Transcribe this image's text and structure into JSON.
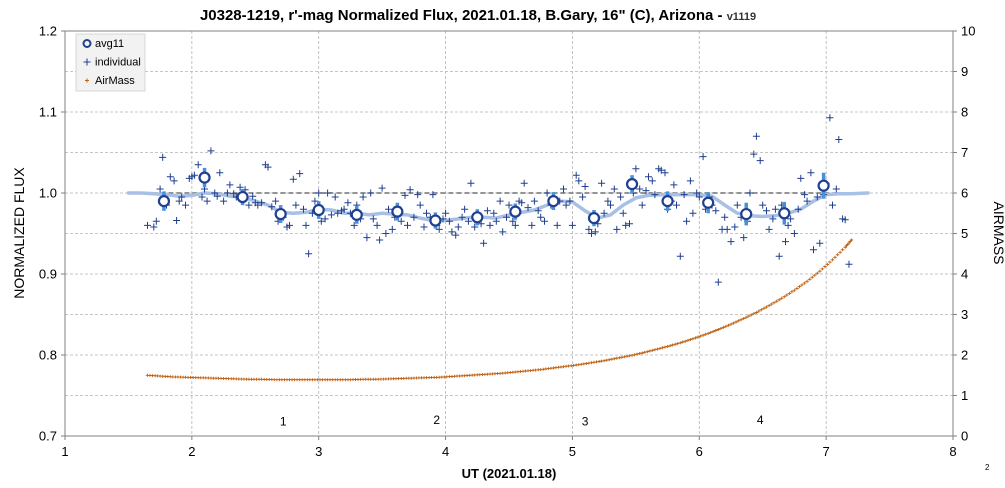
{
  "chart_data": {
    "type": "scatter",
    "title": "J0328-1219, r'-mag Normalized Flux, 2021.01.18, B.Gary, 16\" (C), Arizona",
    "title_suffix": " - ",
    "version": "v1119",
    "xlabel": "UT (2021.01.18)",
    "ylabel": "NORMALIZED FLUX",
    "y2label": "AIRMASS",
    "corner_label": "2",
    "xlim": [
      1,
      8
    ],
    "ylim": [
      0.7,
      1.2
    ],
    "y2lim": [
      0,
      10
    ],
    "x_ticks": [
      "1",
      "2",
      "3",
      "4",
      "5",
      "6",
      "7",
      "8"
    ],
    "y_ticks": [
      "0.7",
      "0.8",
      "0.9",
      "1.0",
      "1.1",
      "1.2"
    ],
    "y2_ticks": [
      "0",
      "1",
      "2",
      "3",
      "4",
      "5",
      "6",
      "7",
      "8",
      "9",
      "10"
    ],
    "grid": true,
    "legend_position": "top-left",
    "colors": {
      "avg": "#1f3f8f",
      "errorbar": "#4a90d9",
      "individual": "#1f3f8f",
      "airmass": "#c06010",
      "model": "#a8bfe6",
      "reference": "#707070",
      "grid": "#b4b4b4"
    },
    "reference_line": {
      "y": 1.0,
      "x": [
        1.5,
        7.33
      ]
    },
    "series": [
      {
        "name": "avg11",
        "x": [
          1.78,
          2.1,
          2.4,
          2.7,
          3.0,
          3.3,
          3.62,
          3.92,
          4.25,
          4.55,
          4.85,
          5.17,
          5.47,
          5.75,
          6.07,
          6.37,
          6.67,
          6.98
        ],
        "values": [
          0.99,
          1.019,
          0.995,
          0.974,
          0.979,
          0.973,
          0.977,
          0.966,
          0.97,
          0.977,
          0.99,
          0.969,
          1.011,
          0.99,
          0.988,
          0.974,
          0.975,
          1.009
        ],
        "errors": [
          0.012,
          0.012,
          0.01,
          0.011,
          0.011,
          0.011,
          0.011,
          0.01,
          0.01,
          0.01,
          0.011,
          0.01,
          0.011,
          0.012,
          0.013,
          0.014,
          0.014,
          0.016
        ]
      },
      {
        "name": "individual",
        "x": [
          1.65,
          1.7,
          1.72,
          1.75,
          1.77,
          1.8,
          1.83,
          1.86,
          1.88,
          1.9,
          1.92,
          1.95,
          1.98,
          2.0,
          2.02,
          2.05,
          2.08,
          2.1,
          2.12,
          2.15,
          2.18,
          2.2,
          2.22,
          2.25,
          2.28,
          2.3,
          2.33,
          2.35,
          2.38,
          2.42,
          2.45,
          2.48,
          2.5,
          2.52,
          2.55,
          2.58,
          2.6,
          2.63,
          2.66,
          2.68,
          2.7,
          2.72,
          2.75,
          2.77,
          2.8,
          2.82,
          2.85,
          2.88,
          2.9,
          2.92,
          2.95,
          2.97,
          3.0,
          3.02,
          3.05,
          3.07,
          3.1,
          3.13,
          3.15,
          3.18,
          3.2,
          3.23,
          3.25,
          3.28,
          3.3,
          3.33,
          3.35,
          3.38,
          3.41,
          3.43,
          3.46,
          3.48,
          3.5,
          3.53,
          3.55,
          3.58,
          3.6,
          3.62,
          3.65,
          3.68,
          3.7,
          3.72,
          3.75,
          3.78,
          3.8,
          3.83,
          3.85,
          3.88,
          3.9,
          3.93,
          3.95,
          3.98,
          4.0,
          4.03,
          4.05,
          4.08,
          4.1,
          4.13,
          4.15,
          4.18,
          4.2,
          4.23,
          4.25,
          4.28,
          4.3,
          4.33,
          4.35,
          4.38,
          4.4,
          4.43,
          4.45,
          4.48,
          4.5,
          4.53,
          4.55,
          4.58,
          4.6,
          4.62,
          4.65,
          4.68,
          4.7,
          4.73,
          4.75,
          4.78,
          4.8,
          4.83,
          4.85,
          4.88,
          4.9,
          4.93,
          4.95,
          4.98,
          5.0,
          5.03,
          5.05,
          5.08,
          5.1,
          5.13,
          5.15,
          5.18,
          5.2,
          5.23,
          5.25,
          5.28,
          5.3,
          5.33,
          5.35,
          5.38,
          5.4,
          5.42,
          5.45,
          5.48,
          5.5,
          5.53,
          5.55,
          5.58,
          5.6,
          5.63,
          5.65,
          5.68,
          5.7,
          5.73,
          5.75,
          5.78,
          5.8,
          5.82,
          5.85,
          5.88,
          5.9,
          5.93,
          5.95,
          5.98,
          6.0,
          6.03,
          6.05,
          6.08,
          6.1,
          6.13,
          6.15,
          6.18,
          6.2,
          6.22,
          6.25,
          6.28,
          6.3,
          6.33,
          6.35,
          6.38,
          6.4,
          6.43,
          6.45,
          6.48,
          6.5,
          6.53,
          6.55,
          6.58,
          6.6,
          6.63,
          6.65,
          6.68,
          6.7,
          6.72,
          6.75,
          6.78,
          6.8,
          6.83,
          6.85,
          6.88,
          6.9,
          6.93,
          6.95,
          6.98,
          7.0,
          7.03,
          7.05,
          7.08,
          7.1,
          7.13,
          7.15,
          7.18
        ],
        "values": [
          0.96,
          0.958,
          0.965,
          1.005,
          1.044,
          0.985,
          1.02,
          1.015,
          0.966,
          0.99,
          0.995,
          0.985,
          1.018,
          1.02,
          1.022,
          1.035,
          0.995,
          1.005,
          0.99,
          1.052,
          1.0,
          0.996,
          1.025,
          0.99,
          1.0,
          1.01,
          0.999,
          0.995,
          1.007,
          1.004,
          0.985,
          0.996,
          0.988,
          0.985,
          0.988,
          1.035,
          1.032,
          0.983,
          0.99,
          0.965,
          0.968,
          0.97,
          0.958,
          0.96,
          1.017,
          0.985,
          1.024,
          0.98,
          0.96,
          0.925,
          0.975,
          0.99,
          1.0,
          0.965,
          0.968,
          1.0,
          0.973,
          0.995,
          0.975,
          0.978,
          0.98,
          0.988,
          0.975,
          0.96,
          0.985,
          0.968,
          0.995,
          0.945,
          1.0,
          0.968,
          0.96,
          0.942,
          1.006,
          0.95,
          0.98,
          0.955,
          0.97,
          0.983,
          0.965,
          0.997,
          0.96,
          1.004,
          0.97,
          0.998,
          0.985,
          0.958,
          0.975,
          0.97,
          0.998,
          0.96,
          0.955,
          0.968,
          0.975,
          0.965,
          0.952,
          0.948,
          0.958,
          0.97,
          0.98,
          0.965,
          1.012,
          0.958,
          0.975,
          0.962,
          0.938,
          0.978,
          0.96,
          0.975,
          0.965,
          0.99,
          0.952,
          0.97,
          0.985,
          0.965,
          0.96,
          0.99,
          0.988,
          1.012,
          0.982,
          0.96,
          0.99,
          0.978,
          0.97,
          0.965,
          1.0,
          0.985,
          0.992,
          0.96,
          0.99,
          1.005,
          0.985,
          0.99,
          0.96,
          1.022,
          1.015,
          0.995,
          1.008,
          0.955,
          0.95,
          0.952,
          0.962,
          1.012,
          0.975,
          0.99,
          0.985,
          1.005,
          0.955,
          0.995,
          0.975,
          0.96,
          0.962,
          1.0,
          1.03,
          1.005,
          0.985,
          1.003,
          1.02,
          1.015,
          0.998,
          1.03,
          1.028,
          1.025,
          0.98,
          0.99,
          1.01,
          0.985,
          0.922,
          0.998,
          0.965,
          1.015,
          0.975,
          1.0,
          0.995,
          1.045,
          0.98,
          0.995,
          0.985,
          0.978,
          0.89,
          0.955,
          0.97,
          0.955,
          0.94,
          0.958,
          0.985,
          0.97,
          0.945,
          0.965,
          1.0,
          1.048,
          1.07,
          1.04,
          0.985,
          0.978,
          0.955,
          0.968,
          0.98,
          0.922,
          0.985,
          0.94,
          0.96,
          0.968,
          0.95,
          0.98,
          1.018,
          0.998,
          0.99,
          1.025,
          0.93,
          0.995,
          0.938,
          0.998,
          1.012,
          1.093,
          0.985,
          1.005,
          1.066,
          0.968,
          0.967,
          0.912
        ]
      },
      {
        "name": "AirMass",
        "x": [
          1.65,
          1.75,
          1.85,
          1.95,
          2.05,
          2.15,
          2.25,
          2.35,
          2.45,
          2.55,
          2.65,
          2.75,
          2.85,
          2.95,
          3.05,
          3.15,
          3.25,
          3.35,
          3.45,
          3.55,
          3.65,
          3.75,
          3.85,
          3.95,
          4.05,
          4.15,
          4.25,
          4.35,
          4.45,
          4.55,
          4.65,
          4.75,
          4.85,
          4.95,
          5.05,
          5.15,
          5.25,
          5.35,
          5.45,
          5.55,
          5.65,
          5.75,
          5.85,
          5.95,
          6.05,
          6.15,
          6.25,
          6.35,
          6.45,
          6.55,
          6.65,
          6.75,
          6.85,
          6.95,
          7.05,
          7.15,
          7.2
        ],
        "values": [
          1.5,
          1.48,
          1.46,
          1.45,
          1.44,
          1.43,
          1.42,
          1.41,
          1.4,
          1.4,
          1.39,
          1.39,
          1.39,
          1.39,
          1.39,
          1.39,
          1.39,
          1.4,
          1.4,
          1.41,
          1.42,
          1.43,
          1.44,
          1.45,
          1.47,
          1.49,
          1.51,
          1.53,
          1.55,
          1.58,
          1.61,
          1.64,
          1.68,
          1.72,
          1.76,
          1.81,
          1.86,
          1.92,
          1.98,
          2.05,
          2.13,
          2.21,
          2.3,
          2.4,
          2.51,
          2.63,
          2.76,
          2.9,
          3.05,
          3.22,
          3.4,
          3.6,
          3.82,
          4.07,
          4.35,
          4.66,
          4.84
        ],
        "axis": "right"
      }
    ],
    "model_curve": {
      "x": [
        1.5,
        1.6,
        1.7,
        1.8,
        1.9,
        2.0,
        2.1,
        2.2,
        2.3,
        2.4,
        2.5,
        2.6,
        2.7,
        2.8,
        2.9,
        3.0,
        3.1,
        3.2,
        3.3,
        3.4,
        3.5,
        3.6,
        3.7,
        3.8,
        3.9,
        4.0,
        4.1,
        4.2,
        4.3,
        4.4,
        4.5,
        4.6,
        4.7,
        4.8,
        4.9,
        5.0,
        5.1,
        5.2,
        5.3,
        5.4,
        5.5,
        5.6,
        5.7,
        5.8,
        5.9,
        6.0,
        6.1,
        6.2,
        6.3,
        6.4,
        6.5,
        6.6,
        6.7,
        6.8,
        6.9,
        7.0,
        7.1,
        7.2,
        7.33
      ],
      "values": [
        1.0,
        1.0,
        0.999,
        0.998,
        0.996,
        0.997,
        1.0,
        0.999,
        0.996,
        0.995,
        0.99,
        0.985,
        0.976,
        0.975,
        0.976,
        0.98,
        0.979,
        0.975,
        0.975,
        0.973,
        0.975,
        0.974,
        0.973,
        0.969,
        0.966,
        0.966,
        0.968,
        0.97,
        0.97,
        0.969,
        0.973,
        0.976,
        0.979,
        0.985,
        0.99,
        0.989,
        0.978,
        0.969,
        0.973,
        0.985,
        0.994,
        0.997,
        0.998,
        0.998,
        0.998,
        0.998,
        0.996,
        0.985,
        0.975,
        0.972,
        0.971,
        0.972,
        0.975,
        0.98,
        0.99,
        0.998,
        0.999,
        0.999,
        1.0
      ]
    },
    "annotations": [
      {
        "x": 2.72,
        "y": 0.713,
        "text": "1"
      },
      {
        "x": 3.93,
        "y": 0.715,
        "text": "2"
      },
      {
        "x": 5.1,
        "y": 0.713,
        "text": "3"
      },
      {
        "x": 6.48,
        "y": 0.715,
        "text": "4"
      }
    ]
  }
}
